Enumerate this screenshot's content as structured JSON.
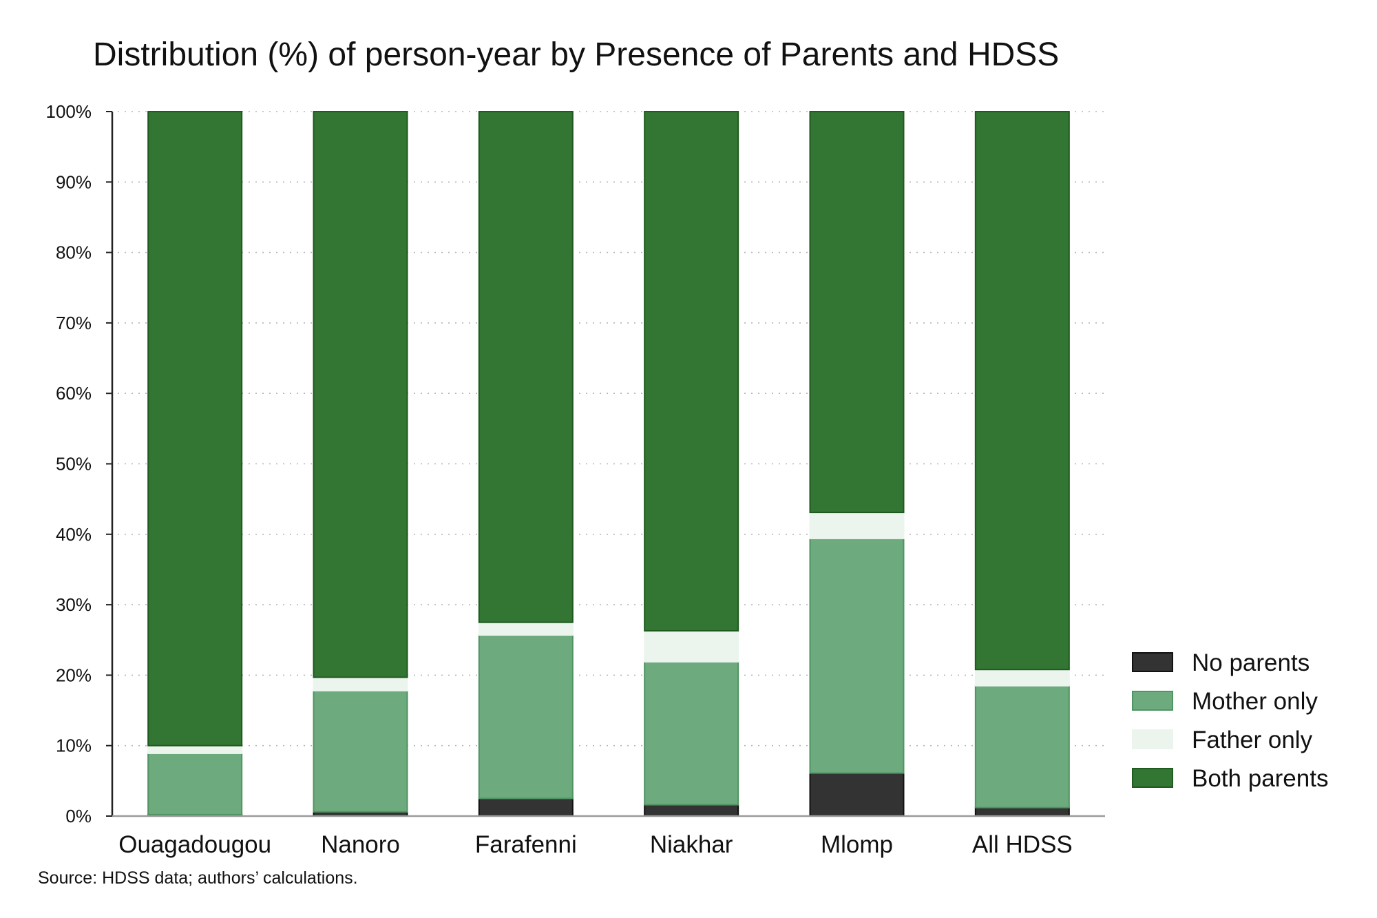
{
  "chart_data": {
    "type": "bar",
    "stacked": true,
    "title": "Distribution (%) of person-year by Presence of Parents and HDSS",
    "source": "Source: HDSS data; authors’ calculations.",
    "xlabel": "",
    "ylabel": "",
    "ylim": [
      0,
      100
    ],
    "yticks": [
      0,
      10,
      20,
      30,
      40,
      50,
      60,
      70,
      80,
      90,
      100
    ],
    "ytick_labels": [
      "0%",
      "10%",
      "20%",
      "30%",
      "40%",
      "50%",
      "60%",
      "70%",
      "80%",
      "90%",
      "100%"
    ],
    "grid": "horizontal-dotted",
    "legend_position": "right",
    "categories": [
      "Ouagadougou",
      "Nanoro",
      "Farafenni",
      "Niakhar",
      "Mlomp",
      "All HDSS"
    ],
    "series": [
      {
        "name": "No parents",
        "color": "#333333",
        "stroke": "#111111",
        "values": [
          0.2,
          0.6,
          2.5,
          1.6,
          6.1,
          1.2
        ]
      },
      {
        "name": "Mother only",
        "color": "#6daa7d",
        "stroke": "#4f9463",
        "values": [
          8.7,
          17.2,
          23.2,
          20.3,
          33.3,
          17.3
        ]
      },
      {
        "name": "Father only",
        "color": "#ebf5ed",
        "stroke": "#ebf5ed",
        "values": [
          1.1,
          1.9,
          1.8,
          4.4,
          3.7,
          2.3
        ]
      },
      {
        "name": "Both parents",
        "color": "#337533",
        "stroke": "#1f5a1f",
        "values": [
          90.0,
          80.3,
          72.5,
          73.7,
          56.9,
          79.2
        ]
      }
    ]
  }
}
